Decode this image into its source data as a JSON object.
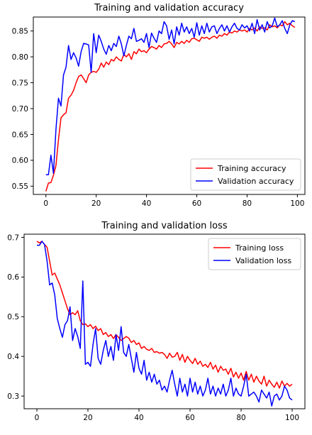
{
  "chart_data": [
    {
      "type": "line",
      "title": "Training and validation accuracy",
      "xlabel": "",
      "ylabel": "",
      "xlim": [
        -5,
        103
      ],
      "ylim": [
        0.534,
        0.877
      ],
      "xticks": [
        0,
        20,
        40,
        60,
        80,
        100
      ],
      "yticks": [
        0.55,
        0.6,
        0.65,
        0.7,
        0.75,
        0.8,
        0.85
      ],
      "grid": false,
      "legend_position": "lower-right",
      "series": [
        {
          "name": "Training accuracy",
          "color": "#ff0000",
          "x": [
            0,
            1,
            2,
            3,
            4,
            5,
            6,
            7,
            8,
            9,
            10,
            11,
            12,
            13,
            14,
            15,
            16,
            17,
            18,
            19,
            20,
            21,
            22,
            23,
            24,
            25,
            26,
            27,
            28,
            29,
            30,
            31,
            32,
            33,
            34,
            35,
            36,
            37,
            38,
            39,
            40,
            41,
            42,
            43,
            44,
            45,
            46,
            47,
            48,
            49,
            50,
            51,
            52,
            53,
            54,
            55,
            56,
            57,
            58,
            59,
            60,
            61,
            62,
            63,
            64,
            65,
            66,
            67,
            68,
            69,
            70,
            71,
            72,
            73,
            74,
            75,
            76,
            77,
            78,
            79,
            80,
            81,
            82,
            83,
            84,
            85,
            86,
            87,
            88,
            89,
            90,
            91,
            92,
            93,
            94,
            95,
            96,
            97,
            98,
            99
          ],
          "y": [
            0.54,
            0.556,
            0.557,
            0.571,
            0.59,
            0.64,
            0.682,
            0.688,
            0.692,
            0.72,
            0.726,
            0.735,
            0.75,
            0.762,
            0.765,
            0.758,
            0.75,
            0.765,
            0.77,
            0.772,
            0.77,
            0.776,
            0.788,
            0.78,
            0.79,
            0.785,
            0.795,
            0.792,
            0.8,
            0.795,
            0.792,
            0.805,
            0.8,
            0.806,
            0.795,
            0.81,
            0.806,
            0.815,
            0.81,
            0.812,
            0.808,
            0.815,
            0.82,
            0.818,
            0.815,
            0.822,
            0.818,
            0.825,
            0.826,
            0.83,
            0.825,
            0.818,
            0.828,
            0.825,
            0.83,
            0.826,
            0.832,
            0.828,
            0.835,
            0.836,
            0.833,
            0.83,
            0.838,
            0.836,
            0.838,
            0.834,
            0.838,
            0.84,
            0.836,
            0.842,
            0.84,
            0.845,
            0.842,
            0.848,
            0.846,
            0.85,
            0.848,
            0.852,
            0.85,
            0.852,
            0.848,
            0.855,
            0.852,
            0.856,
            0.85,
            0.858,
            0.855,
            0.856,
            0.852,
            0.862,
            0.858,
            0.86,
            0.856,
            0.862,
            0.86,
            0.868,
            0.862,
            0.865,
            0.86,
            0.857
          ]
        },
        {
          "name": "Validation accuracy",
          "color": "#0000ff",
          "x": [
            0,
            1,
            2,
            3,
            4,
            5,
            6,
            7,
            8,
            9,
            10,
            11,
            12,
            13,
            14,
            15,
            16,
            17,
            18,
            19,
            20,
            21,
            22,
            23,
            24,
            25,
            26,
            27,
            28,
            29,
            30,
            31,
            32,
            33,
            34,
            35,
            36,
            37,
            38,
            39,
            40,
            41,
            42,
            43,
            44,
            45,
            46,
            47,
            48,
            49,
            50,
            51,
            52,
            53,
            54,
            55,
            56,
            57,
            58,
            59,
            60,
            61,
            62,
            63,
            64,
            65,
            66,
            67,
            68,
            69,
            70,
            71,
            72,
            73,
            74,
            75,
            76,
            77,
            78,
            79,
            80,
            81,
            82,
            83,
            84,
            85,
            86,
            87,
            88,
            89,
            90,
            91,
            92,
            93,
            94,
            95,
            96,
            97,
            98,
            99
          ],
          "y": [
            0.572,
            0.572,
            0.61,
            0.575,
            0.66,
            0.72,
            0.705,
            0.765,
            0.78,
            0.822,
            0.795,
            0.808,
            0.798,
            0.782,
            0.81,
            0.826,
            0.825,
            0.823,
            0.77,
            0.845,
            0.808,
            0.842,
            0.83,
            0.815,
            0.805,
            0.822,
            0.812,
            0.826,
            0.82,
            0.84,
            0.825,
            0.802,
            0.822,
            0.84,
            0.835,
            0.855,
            0.83,
            0.832,
            0.835,
            0.828,
            0.845,
            0.818,
            0.846,
            0.836,
            0.828,
            0.85,
            0.845,
            0.868,
            0.86,
            0.834,
            0.852,
            0.825,
            0.858,
            0.842,
            0.865,
            0.848,
            0.858,
            0.845,
            0.855,
            0.838,
            0.866,
            0.842,
            0.86,
            0.845,
            0.865,
            0.848,
            0.858,
            0.86,
            0.845,
            0.855,
            0.862,
            0.85,
            0.86,
            0.848,
            0.858,
            0.865,
            0.855,
            0.852,
            0.862,
            0.856,
            0.86,
            0.85,
            0.865,
            0.845,
            0.872,
            0.852,
            0.862,
            0.848,
            0.868,
            0.856,
            0.86,
            0.875,
            0.858,
            0.862,
            0.87,
            0.855,
            0.845,
            0.862,
            0.87,
            0.868
          ]
        }
      ]
    },
    {
      "type": "line",
      "title": "Training and validation loss",
      "xlabel": "",
      "ylabel": "",
      "xlim": [
        -5,
        105
      ],
      "ylim": [
        0.268,
        0.708
      ],
      "xticks": [
        0,
        20,
        40,
        60,
        80,
        100
      ],
      "yticks": [
        0.3,
        0.4,
        0.5,
        0.6,
        0.7
      ],
      "grid": false,
      "legend_position": "upper-right",
      "series": [
        {
          "name": "Training loss",
          "color": "#ff0000",
          "x": [
            0,
            1,
            2,
            3,
            4,
            5,
            6,
            7,
            8,
            9,
            10,
            11,
            12,
            13,
            14,
            15,
            16,
            17,
            18,
            19,
            20,
            21,
            22,
            23,
            24,
            25,
            26,
            27,
            28,
            29,
            30,
            31,
            32,
            33,
            34,
            35,
            36,
            37,
            38,
            39,
            40,
            41,
            42,
            43,
            44,
            45,
            46,
            47,
            48,
            49,
            50,
            51,
            52,
            53,
            54,
            55,
            56,
            57,
            58,
            59,
            60,
            61,
            62,
            63,
            64,
            65,
            66,
            67,
            68,
            69,
            70,
            71,
            72,
            73,
            74,
            75,
            76,
            77,
            78,
            79,
            80,
            81,
            82,
            83,
            84,
            85,
            86,
            87,
            88,
            89,
            90,
            91,
            92,
            93,
            94,
            95,
            96,
            97,
            98,
            99,
            100
          ],
          "y": [
            0.69,
            0.686,
            0.69,
            0.682,
            0.675,
            0.64,
            0.605,
            0.61,
            0.595,
            0.58,
            0.56,
            0.54,
            0.52,
            0.505,
            0.51,
            0.505,
            0.515,
            0.49,
            0.48,
            0.482,
            0.475,
            0.48,
            0.47,
            0.476,
            0.465,
            0.47,
            0.455,
            0.46,
            0.45,
            0.455,
            0.445,
            0.455,
            0.448,
            0.44,
            0.445,
            0.45,
            0.446,
            0.435,
            0.44,
            0.43,
            0.434,
            0.42,
            0.425,
            0.418,
            0.415,
            0.42,
            0.41,
            0.412,
            0.408,
            0.41,
            0.405,
            0.395,
            0.408,
            0.398,
            0.4,
            0.41,
            0.39,
            0.405,
            0.385,
            0.4,
            0.39,
            0.382,
            0.395,
            0.38,
            0.388,
            0.375,
            0.38,
            0.372,
            0.385,
            0.368,
            0.378,
            0.36,
            0.375,
            0.365,
            0.368,
            0.355,
            0.37,
            0.348,
            0.36,
            0.345,
            0.358,
            0.34,
            0.362,
            0.34,
            0.355,
            0.335,
            0.35,
            0.338,
            0.33,
            0.35,
            0.325,
            0.34,
            0.33,
            0.322,
            0.335,
            0.32,
            0.338,
            0.325,
            0.332,
            0.325,
            0.33
          ]
        },
        {
          "name": "Validation loss",
          "color": "#0000ff",
          "x": [
            0,
            1,
            2,
            3,
            4,
            5,
            6,
            7,
            8,
            9,
            10,
            11,
            12,
            13,
            14,
            15,
            16,
            17,
            18,
            19,
            20,
            21,
            22,
            23,
            24,
            25,
            26,
            27,
            28,
            29,
            30,
            31,
            32,
            33,
            34,
            35,
            36,
            37,
            38,
            39,
            40,
            41,
            42,
            43,
            44,
            45,
            46,
            47,
            48,
            49,
            50,
            51,
            52,
            53,
            54,
            55,
            56,
            57,
            58,
            59,
            60,
            61,
            62,
            63,
            64,
            65,
            66,
            67,
            68,
            69,
            70,
            71,
            72,
            73,
            74,
            75,
            76,
            77,
            78,
            79,
            80,
            81,
            82,
            83,
            84,
            85,
            86,
            87,
            88,
            89,
            90,
            91,
            92,
            93,
            94,
            95,
            96,
            97,
            98,
            99,
            100
          ],
          "y": [
            0.68,
            0.68,
            0.69,
            0.682,
            0.64,
            0.58,
            0.585,
            0.555,
            0.495,
            0.47,
            0.448,
            0.48,
            0.49,
            0.525,
            0.44,
            0.47,
            0.45,
            0.42,
            0.59,
            0.38,
            0.385,
            0.375,
            0.43,
            0.47,
            0.395,
            0.38,
            0.415,
            0.44,
            0.4,
            0.425,
            0.39,
            0.455,
            0.415,
            0.475,
            0.41,
            0.4,
            0.43,
            0.395,
            0.36,
            0.41,
            0.37,
            0.355,
            0.39,
            0.34,
            0.36,
            0.335,
            0.355,
            0.33,
            0.34,
            0.315,
            0.325,
            0.31,
            0.34,
            0.365,
            0.33,
            0.3,
            0.345,
            0.31,
            0.33,
            0.3,
            0.345,
            0.31,
            0.335,
            0.305,
            0.325,
            0.3,
            0.315,
            0.345,
            0.305,
            0.325,
            0.3,
            0.32,
            0.305,
            0.33,
            0.3,
            0.315,
            0.345,
            0.3,
            0.32,
            0.305,
            0.3,
            0.325,
            0.355,
            0.3,
            0.305,
            0.31,
            0.3,
            0.285,
            0.315,
            0.305,
            0.295,
            0.31,
            0.275,
            0.3,
            0.305,
            0.29,
            0.3,
            0.325,
            0.315,
            0.295,
            0.29
          ]
        }
      ]
    }
  ]
}
